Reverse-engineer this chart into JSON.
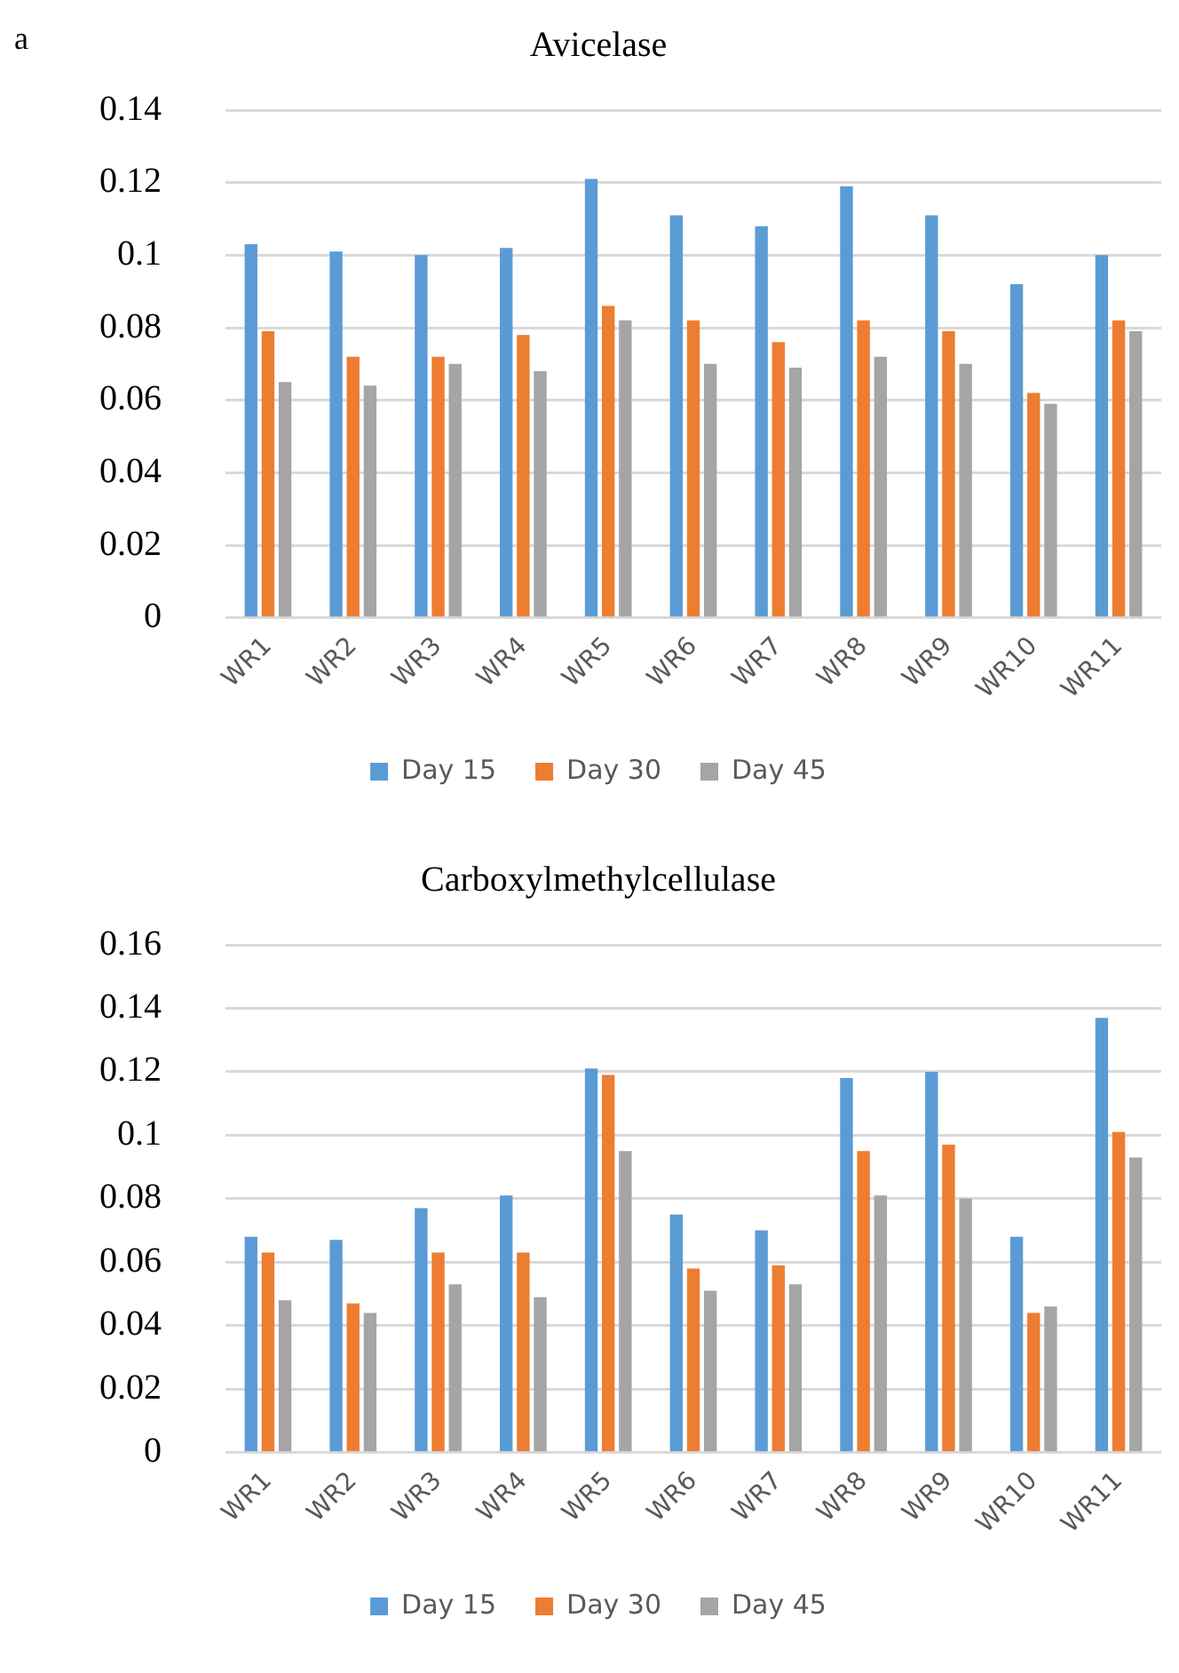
{
  "chart_data": [
    {
      "type": "bar",
      "title": "Avicelase",
      "annotations": [
        "a"
      ],
      "categories": [
        "WR1",
        "WR2",
        "WR3",
        "WR4",
        "WR5",
        "WR6",
        "WR7",
        "WR8",
        "WR9",
        "WR10",
        "WR11"
      ],
      "series": [
        {
          "name": "Day 15",
          "color": "#5b9bd5",
          "values": [
            0.103,
            0.101,
            0.1,
            0.102,
            0.121,
            0.111,
            0.108,
            0.119,
            0.111,
            0.092,
            0.1
          ]
        },
        {
          "name": "Day 30",
          "color": "#ed7d31",
          "values": [
            0.079,
            0.072,
            0.072,
            0.078,
            0.086,
            0.082,
            0.076,
            0.082,
            0.079,
            0.062,
            0.082
          ]
        },
        {
          "name": "Day 45",
          "color": "#a5a5a5",
          "values": [
            0.065,
            0.064,
            0.07,
            0.068,
            0.082,
            0.07,
            0.069,
            0.072,
            0.07,
            0.059,
            0.079
          ]
        }
      ],
      "ylim": [
        0,
        0.14
      ],
      "yticks": [
        0,
        0.02,
        0.04,
        0.06,
        0.08,
        0.1,
        0.12,
        0.14
      ],
      "grid": "y",
      "legend": "bottom"
    },
    {
      "type": "bar",
      "title": "Carboxylmethylcellulase",
      "categories": [
        "WR1",
        "WR2",
        "WR3",
        "WR4",
        "WR5",
        "WR6",
        "WR7",
        "WR8",
        "WR9",
        "WR10",
        "WR11"
      ],
      "series": [
        {
          "name": "Day 15",
          "color": "#5b9bd5",
          "values": [
            0.068,
            0.067,
            0.077,
            0.081,
            0.121,
            0.075,
            0.07,
            0.118,
            0.12,
            0.068,
            0.137
          ]
        },
        {
          "name": "Day 30",
          "color": "#ed7d31",
          "values": [
            0.063,
            0.047,
            0.063,
            0.063,
            0.119,
            0.058,
            0.059,
            0.095,
            0.097,
            0.044,
            0.101
          ]
        },
        {
          "name": "Day 45",
          "color": "#a5a5a5",
          "values": [
            0.048,
            0.044,
            0.053,
            0.049,
            0.095,
            0.051,
            0.053,
            0.081,
            0.08,
            0.046,
            0.093
          ]
        }
      ],
      "ylim": [
        0,
        0.16
      ],
      "yticks": [
        0,
        0.02,
        0.04,
        0.06,
        0.08,
        0.1,
        0.12,
        0.14,
        0.16
      ],
      "grid": "y",
      "legend": "bottom"
    }
  ]
}
